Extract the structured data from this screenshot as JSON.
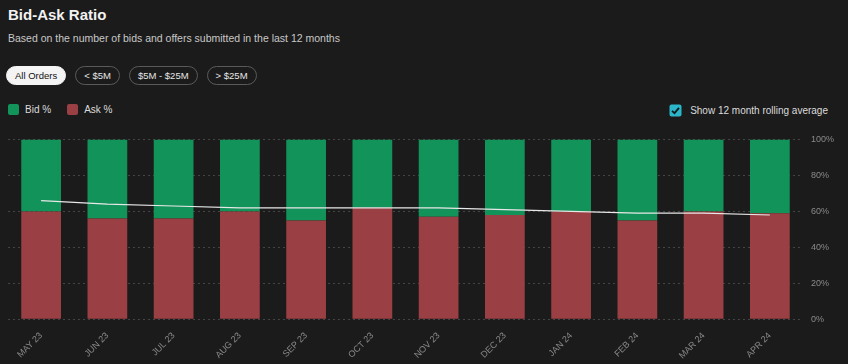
{
  "chart_data": {
    "type": "bar",
    "title": "Bid-Ask Ratio",
    "subtitle": "Based on the number of bids and offers submitted in the last 12 months",
    "categories": [
      "MAY 23",
      "JUN 23",
      "JUL 23",
      "AUG 23",
      "SEP 23",
      "OCT 23",
      "NOV 23",
      "DEC 23",
      "JAN 24",
      "FEB 24",
      "MAR 24",
      "APR 24"
    ],
    "series": [
      {
        "name": "Bid %",
        "color": "#12935a",
        "values": [
          40,
          44,
          44,
          40,
          45,
          38,
          43,
          42,
          40,
          45,
          40,
          41
        ]
      },
      {
        "name": "Ask %",
        "color": "#9a3f43",
        "values": [
          60,
          56,
          56,
          60,
          55,
          62,
          57,
          58,
          60,
          55,
          60,
          59
        ]
      },
      {
        "type": "line",
        "color": "#e8e8e8",
        "marker": "none",
        "values": [
          66,
          64,
          63,
          62,
          62,
          62,
          62,
          61,
          60,
          59,
          59,
          58
        ]
      }
    ],
    "stacked": true,
    "legend": "upper left",
    "grid": true,
    "ylim": [
      0,
      100
    ],
    "yticks": [
      {
        "value": 0,
        "label": "0%"
      },
      {
        "value": 20,
        "label": "20%"
      },
      {
        "value": 40,
        "label": "40%"
      },
      {
        "value": 60,
        "label": "60%"
      },
      {
        "value": 80,
        "label": "80%"
      },
      {
        "value": 100,
        "label": "100%"
      }
    ]
  },
  "controls": {
    "filters": [
      "All Orders",
      "< $5M",
      "$5M - $25M",
      "> $25M"
    ],
    "checkbox": "Show 12 month rolling average"
  }
}
